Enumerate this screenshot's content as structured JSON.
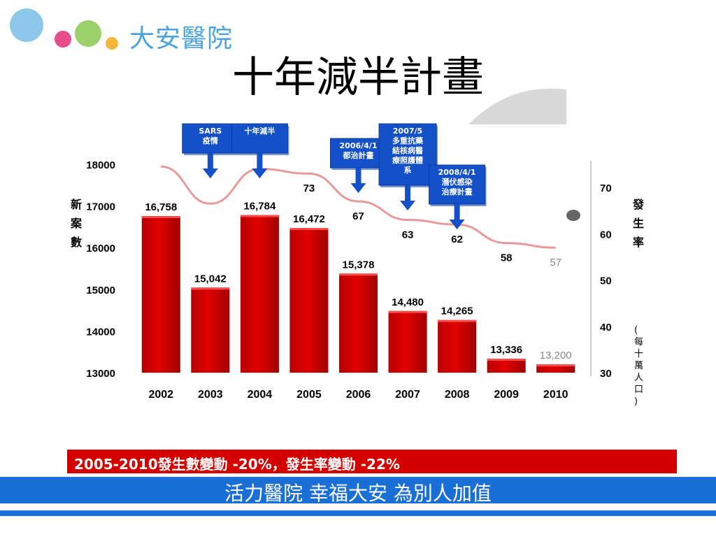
{
  "header": {
    "logo_text": "大安醫院",
    "title": "十年減半計畫"
  },
  "footer": {
    "slogan": "活力醫院 幸福大安 為別人加值"
  },
  "summary": {
    "text": "2005-2010發生數變動 -20%，發生率變動 -22%"
  },
  "colors": {
    "bar": "#e00000",
    "line": "#e89a9a",
    "callout": "#1450c8",
    "footer": "#1a6fd6",
    "logo_blue": "#4aa3df"
  },
  "chart_data": {
    "type": "bar",
    "categories": [
      "2002",
      "2003",
      "2004",
      "2005",
      "2006",
      "2007",
      "2008",
      "2009",
      "2010"
    ],
    "series": [
      {
        "values": [
          16758,
          15042,
          16784,
          16472,
          15378,
          14480,
          14265,
          13336,
          13200
        ]
      }
    ],
    "bar_labels": [
      "16,758",
      "15,042",
      "16,784",
      "16,472",
      "15,378",
      "14,480",
      "14,265",
      "13,336",
      "13,200"
    ],
    "ylim": [
      13000,
      18000
    ],
    "yticks": [
      "13000",
      "14000",
      "15000",
      "16000",
      "17000",
      "18000"
    ],
    "ylabel": "新案數",
    "line": {
      "values": [
        74.5,
        66.5,
        74,
        73,
        67,
        63,
        62,
        58,
        57
      ],
      "labels": [
        "",
        "",
        "",
        "73",
        "67",
        "63",
        "62",
        "58",
        "57"
      ],
      "ylim": [
        30,
        75
      ],
      "yticks": [
        "30",
        "40",
        "50",
        "60",
        "70"
      ],
      "ylabel": "發生率",
      "ylabel_unit": "(每十萬人口)"
    },
    "annotations": [
      {
        "text": "SARS疫情",
        "lines": [
          "SARS",
          "疫情"
        ],
        "year": "2003"
      },
      {
        "text": "十年減半",
        "lines": [
          "十年減半"
        ],
        "year": "2004"
      },
      {
        "text": "2006/4/1都治計畫",
        "lines": [
          "2006/4/1",
          "都治計畫"
        ],
        "year": "2006"
      },
      {
        "text": "2007/5多重抗藥結核病醫療照護體系",
        "lines": [
          "2007/5",
          "多重抗藥",
          "結核病醫",
          "療照護體",
          "系"
        ],
        "year": "2007"
      },
      {
        "text": "2008/4/1潛伏感染治療計畫",
        "lines": [
          "2008/4/1",
          "潛伏感染",
          "治療計畫"
        ],
        "year": "2008"
      }
    ]
  }
}
